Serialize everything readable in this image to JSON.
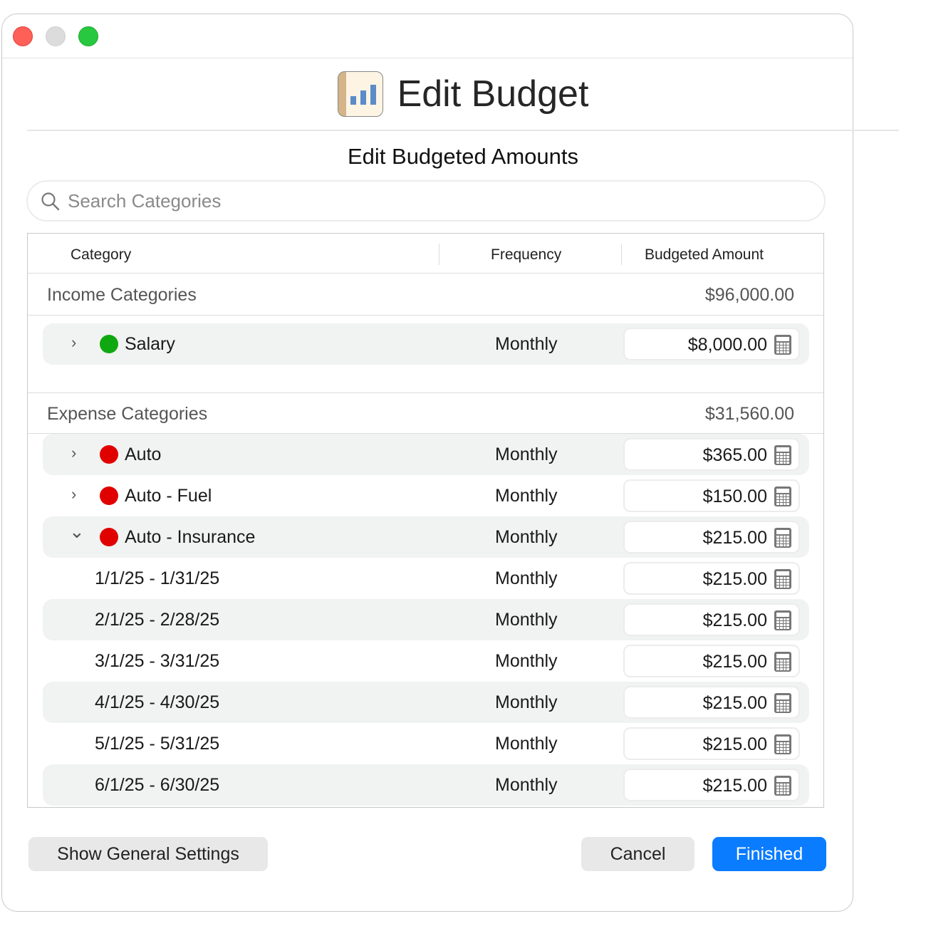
{
  "window": {
    "controls": {
      "close_color": "#fe5f57",
      "minimize_color": "#dcdcdc",
      "zoom_color": "#28c840"
    }
  },
  "header": {
    "title": "Edit Budget",
    "subtitle": "Edit Budgeted Amounts",
    "icon": "bar-chart-icon"
  },
  "search": {
    "placeholder": "Search Categories"
  },
  "table": {
    "columns": [
      "Category",
      "Frequency",
      "Budgeted Amount"
    ],
    "income": {
      "label": "Income Categories",
      "total": "$96,000.00",
      "rows": [
        {
          "name": "Salary",
          "color": "#10a810",
          "expanded": false,
          "frequency": "Monthly",
          "amount": "$8,000.00"
        }
      ]
    },
    "expense": {
      "label": "Expense Categories",
      "total": "$31,560.00",
      "rows": [
        {
          "name": "Auto",
          "color": "#e00000",
          "expanded": false,
          "frequency": "Monthly",
          "amount": "$365.00"
        },
        {
          "name": "Auto - Fuel",
          "color": "#e00000",
          "expanded": false,
          "frequency": "Monthly",
          "amount": "$150.00"
        },
        {
          "name": "Auto - Insurance",
          "color": "#e00000",
          "expanded": true,
          "frequency": "Monthly",
          "amount": "$215.00"
        }
      ],
      "periods": [
        {
          "name": "1/1/25 - 1/31/25",
          "frequency": "Monthly",
          "amount": "$215.00"
        },
        {
          "name": "2/1/25 - 2/28/25",
          "frequency": "Monthly",
          "amount": "$215.00"
        },
        {
          "name": "3/1/25 - 3/31/25",
          "frequency": "Monthly",
          "amount": "$215.00"
        },
        {
          "name": "4/1/25 - 4/30/25",
          "frequency": "Monthly",
          "amount": "$215.00"
        },
        {
          "name": "5/1/25 - 5/31/25",
          "frequency": "Monthly",
          "amount": "$215.00"
        },
        {
          "name": "6/1/25 - 6/30/25",
          "frequency": "Monthly",
          "amount": "$215.00"
        }
      ]
    }
  },
  "footer": {
    "general_settings": "Show General Settings",
    "cancel": "Cancel",
    "finished": "Finished",
    "accent": "#0a7cff"
  }
}
